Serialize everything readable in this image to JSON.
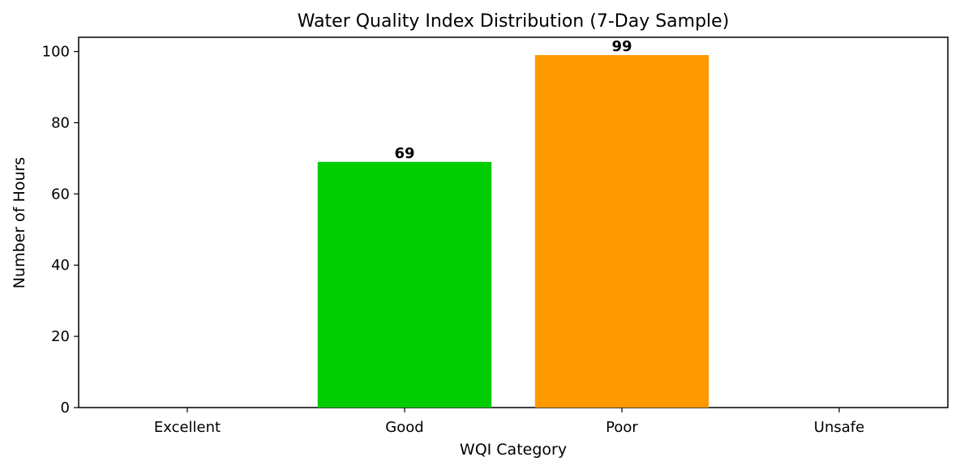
{
  "chart_data": {
    "type": "bar",
    "title": "Water Quality Index Distribution (7-Day Sample)",
    "xlabel": "WQI Category",
    "ylabel": "Number of Hours",
    "categories": [
      "Excellent",
      "Good",
      "Poor",
      "Unsafe"
    ],
    "values": [
      0,
      69,
      99,
      0
    ],
    "value_labels": [
      "",
      "69",
      "99",
      ""
    ],
    "bar_colors": [
      "#00aa00",
      "#00cc00",
      "#ff9900",
      "#cc0000"
    ],
    "ylim": [
      0,
      104
    ],
    "yticks": [
      0,
      20,
      40,
      60,
      80,
      100
    ],
    "ytick_labels": [
      "0",
      "20",
      "40",
      "60",
      "80",
      "100"
    ],
    "grid": false,
    "legend": "none"
  }
}
